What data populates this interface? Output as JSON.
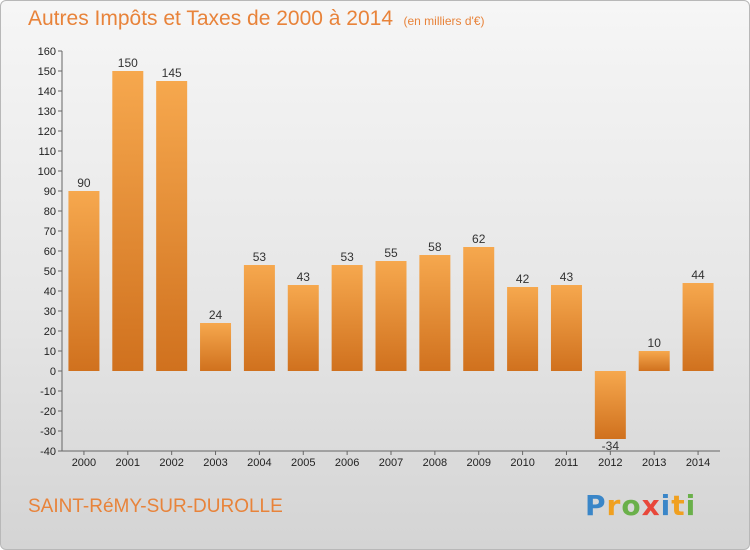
{
  "chart_data": {
    "type": "bar",
    "title": "Autres Impôts et Taxes de 2000 à 2014",
    "unit": "(en milliers d'€)",
    "categories": [
      "2000",
      "2001",
      "2002",
      "2003",
      "2004",
      "2005",
      "2006",
      "2007",
      "2008",
      "2009",
      "2010",
      "2011",
      "2012",
      "2013",
      "2014"
    ],
    "values": [
      90,
      150,
      145,
      24,
      53,
      43,
      53,
      55,
      58,
      62,
      42,
      43,
      -34,
      10,
      44
    ],
    "ylim": [
      -40,
      160
    ],
    "yticks": [
      160,
      150,
      140,
      130,
      120,
      110,
      100,
      90,
      80,
      70,
      60,
      50,
      40,
      30,
      20,
      10,
      0,
      -10,
      -20,
      -30,
      -40
    ],
    "grid": false,
    "colors": {
      "bar_light": "#f6a84e",
      "bar_dark": "#d0711e",
      "text_accent": "#e8833a"
    }
  },
  "footer": {
    "commune": "SAINT-RéMY-SUR-DUROLLE",
    "logo": {
      "letters": [
        "P",
        "r",
        "o",
        "x",
        "i",
        "t",
        "i"
      ],
      "colors": [
        "#3a86c8",
        "#f0a020",
        "#6ab04a",
        "#e8473a",
        "#3a86c8",
        "#f0a020",
        "#6ab04a"
      ]
    }
  }
}
